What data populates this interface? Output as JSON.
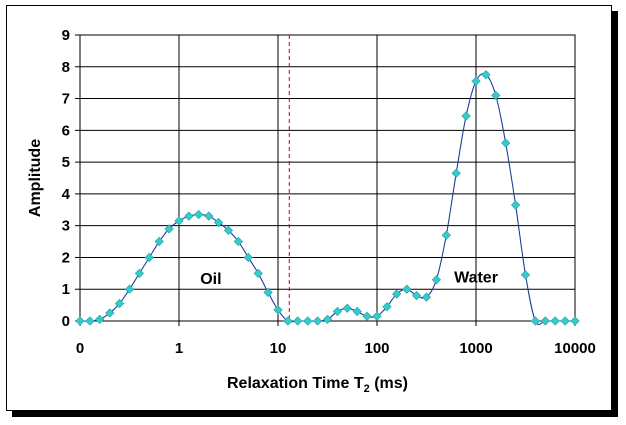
{
  "chart_data": {
    "type": "scatter",
    "title": "",
    "xlabel": "Relaxation Time T",
    "xlabel_subscript": "2",
    "xlabel_suffix": " (ms)",
    "ylabel": "Amplitude",
    "x_scale": "log",
    "xlim": [
      0.1,
      10000
    ],
    "ylim": [
      0,
      9
    ],
    "x_tick_values": [
      0.1,
      1,
      10,
      100,
      1000,
      10000
    ],
    "x_tick_labels": [
      "0",
      "1",
      "10",
      "100",
      "1000",
      "10000"
    ],
    "y_ticks": [
      0,
      1,
      2,
      3,
      4,
      5,
      6,
      7,
      8,
      9
    ],
    "grid": true,
    "legend": "none",
    "marker": "diamond",
    "marker_color": "#33CCCC",
    "line_color": "#1F3F99",
    "cutoff": {
      "x": 13,
      "style": "dashed",
      "color": "#CC0000"
    },
    "annotations": [
      {
        "text": "Oil",
        "x": 2.1,
        "y": 1.35
      },
      {
        "text": "Water",
        "x": 1000,
        "y": 1.4
      }
    ],
    "series": [
      {
        "x": [
          0.1,
          0.126,
          0.158,
          0.2,
          0.251,
          0.316,
          0.398,
          0.501,
          0.631,
          0.794,
          1,
          1.26,
          1.58,
          2,
          2.51,
          3.16,
          3.98,
          5.01,
          6.31,
          7.94,
          10,
          12.6,
          15.8,
          20,
          25.1,
          31.6,
          39.8,
          50.1,
          63.1,
          79.4,
          100,
          126,
          158,
          200,
          251,
          316,
          398,
          501,
          631,
          794,
          1000,
          1259,
          1585,
          1995,
          2512,
          3162,
          3981,
          5012,
          6310,
          7943,
          10000
        ],
        "y": [
          0,
          0,
          0.05,
          0.25,
          0.55,
          1.0,
          1.5,
          2.0,
          2.5,
          2.9,
          3.15,
          3.3,
          3.35,
          3.3,
          3.1,
          2.85,
          2.5,
          2.0,
          1.5,
          0.9,
          0.35,
          0,
          0,
          0,
          0,
          0.05,
          0.3,
          0.4,
          0.3,
          0.15,
          0.15,
          0.45,
          0.85,
          1.0,
          0.8,
          0.75,
          1.3,
          2.7,
          4.65,
          6.45,
          7.55,
          7.75,
          7.1,
          5.6,
          3.65,
          1.45,
          0,
          0,
          0,
          0,
          0
        ]
      }
    ]
  }
}
